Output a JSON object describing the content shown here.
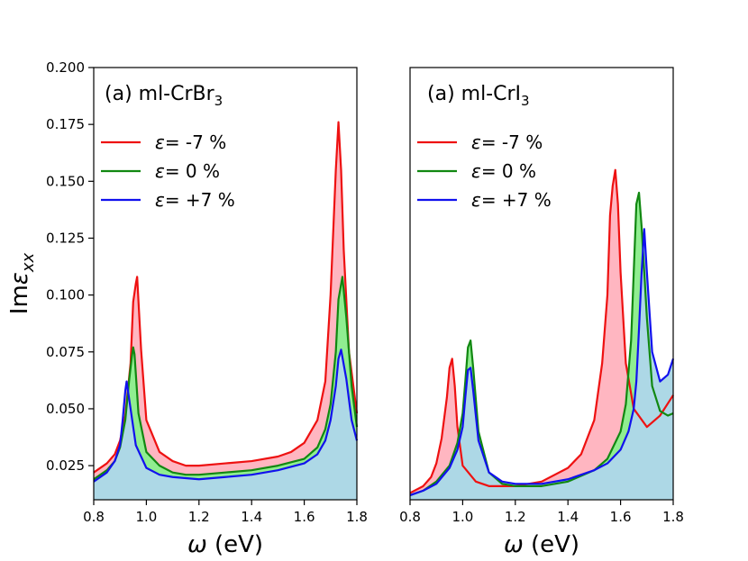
{
  "chart_data": {
    "type": "line",
    "ylabel_main": "Im",
    "ylabel_symbol": "ε",
    "ylabel_sub": "xx",
    "ylim": [
      0.01,
      0.2
    ],
    "yticks": [
      0.025,
      0.05,
      0.075,
      0.1,
      0.125,
      0.15,
      0.175,
      0.2
    ],
    "ytick_labels": [
      "0.025",
      "0.050",
      "0.075",
      "0.100",
      "0.125",
      "0.150",
      "0.175",
      "0.200"
    ],
    "colors": {
      "red": "#ee1111",
      "green": "#118811",
      "blue": "#1111ee",
      "fill_red": "#ffb6c1",
      "fill_green": "#90ee90",
      "fill_blue": "#add8e6"
    },
    "panels": [
      {
        "title_prefix": "(a) ml-CrBr",
        "title_sub": "3",
        "xlabel_symbol": "ω",
        "xlabel_text": " (eV)",
        "xlim": [
          0.8,
          1.8
        ],
        "xticks": [
          0.8,
          1.0,
          1.2,
          1.4,
          1.6,
          1.8
        ],
        "xtick_labels": [
          "0.8",
          "1.0",
          "1.2",
          "1.4",
          "1.6",
          "1.8"
        ],
        "legend": [
          {
            "symbol": "ε",
            "label": "= -7 %"
          },
          {
            "symbol": "ε",
            "label": "= 0 %"
          },
          {
            "symbol": "ε",
            "label": "= +7 %"
          }
        ],
        "series": [
          {
            "name": "ε = -7 %",
            "color": "#ee1111",
            "x": [
              0.8,
              0.85,
              0.88,
              0.9,
              0.92,
              0.94,
              0.95,
              0.96,
              0.965,
              0.98,
              1.0,
              1.05,
              1.1,
              1.15,
              1.2,
              1.3,
              1.4,
              1.5,
              1.55,
              1.6,
              1.65,
              1.68,
              1.7,
              1.72,
              1.73,
              1.74,
              1.75,
              1.77,
              1.8
            ],
            "y": [
              0.022,
              0.026,
              0.03,
              0.036,
              0.047,
              0.07,
              0.097,
              0.105,
              0.108,
              0.076,
              0.045,
              0.031,
              0.027,
              0.025,
              0.025,
              0.026,
              0.027,
              0.029,
              0.031,
              0.035,
              0.045,
              0.062,
              0.1,
              0.155,
              0.176,
              0.155,
              0.12,
              0.075,
              0.048
            ]
          },
          {
            "name": "ε = 0 %",
            "color": "#118811",
            "x": [
              0.8,
              0.85,
              0.88,
              0.9,
              0.92,
              0.935,
              0.945,
              0.95,
              0.955,
              0.97,
              1.0,
              1.05,
              1.1,
              1.15,
              1.2,
              1.3,
              1.4,
              1.5,
              1.6,
              1.65,
              1.68,
              1.7,
              1.72,
              1.73,
              1.745,
              1.76,
              1.78,
              1.8
            ],
            "y": [
              0.019,
              0.023,
              0.027,
              0.033,
              0.045,
              0.063,
              0.073,
              0.077,
              0.074,
              0.048,
              0.031,
              0.025,
              0.022,
              0.021,
              0.021,
              0.022,
              0.023,
              0.025,
              0.028,
              0.033,
              0.041,
              0.052,
              0.075,
              0.098,
              0.108,
              0.09,
              0.06,
              0.042
            ]
          },
          {
            "name": "ε = +7 %",
            "color": "#1111ee",
            "x": [
              0.8,
              0.85,
              0.88,
              0.9,
              0.91,
              0.92,
              0.925,
              0.94,
              0.96,
              1.0,
              1.05,
              1.1,
              1.2,
              1.3,
              1.4,
              1.5,
              1.6,
              1.65,
              1.68,
              1.7,
              1.72,
              1.73,
              1.74,
              1.76,
              1.78,
              1.8
            ],
            "y": [
              0.018,
              0.022,
              0.027,
              0.034,
              0.045,
              0.058,
              0.062,
              0.05,
              0.034,
              0.024,
              0.021,
              0.02,
              0.019,
              0.02,
              0.021,
              0.023,
              0.026,
              0.03,
              0.036,
              0.045,
              0.06,
              0.072,
              0.076,
              0.063,
              0.045,
              0.036
            ]
          }
        ]
      },
      {
        "title_prefix": "(a) ml-CrI",
        "title_sub": "3",
        "xlabel_symbol": "ω",
        "xlabel_text": " (eV)",
        "xlim": [
          0.8,
          1.8
        ],
        "xticks": [
          0.8,
          1.0,
          1.2,
          1.4,
          1.6,
          1.8
        ],
        "xtick_labels": [
          "0.8",
          "1.0",
          "1.2",
          "1.4",
          "1.6",
          "1.8"
        ],
        "legend": [
          {
            "symbol": "ε",
            "label": "= -7 %"
          },
          {
            "symbol": "ε",
            "label": "= 0 %"
          },
          {
            "symbol": "ε",
            "label": "= +7 %"
          }
        ],
        "series": [
          {
            "name": "ε = -7 %",
            "color": "#ee1111",
            "x": [
              0.8,
              0.85,
              0.88,
              0.9,
              0.92,
              0.94,
              0.95,
              0.96,
              0.97,
              0.98,
              1.0,
              1.05,
              1.1,
              1.2,
              1.3,
              1.4,
              1.45,
              1.5,
              1.53,
              1.55,
              1.56,
              1.57,
              1.58,
              1.59,
              1.6,
              1.62,
              1.65,
              1.7,
              1.75,
              1.8
            ],
            "y": [
              0.013,
              0.016,
              0.02,
              0.026,
              0.037,
              0.055,
              0.068,
              0.072,
              0.06,
              0.042,
              0.025,
              0.018,
              0.016,
              0.016,
              0.018,
              0.024,
              0.03,
              0.045,
              0.07,
              0.1,
              0.135,
              0.148,
              0.155,
              0.14,
              0.11,
              0.07,
              0.05,
              0.042,
              0.047,
              0.056
            ]
          },
          {
            "name": "ε = 0 %",
            "color": "#118811",
            "x": [
              0.8,
              0.85,
              0.9,
              0.95,
              0.98,
              1.0,
              1.01,
              1.02,
              1.03,
              1.04,
              1.06,
              1.1,
              1.15,
              1.2,
              1.3,
              1.4,
              1.5,
              1.55,
              1.6,
              1.62,
              1.64,
              1.65,
              1.66,
              1.67,
              1.68,
              1.7,
              1.72,
              1.75,
              1.78,
              1.8
            ],
            "y": [
              0.012,
              0.014,
              0.018,
              0.025,
              0.035,
              0.048,
              0.062,
              0.077,
              0.08,
              0.068,
              0.04,
              0.022,
              0.017,
              0.016,
              0.016,
              0.018,
              0.023,
              0.028,
              0.04,
              0.052,
              0.08,
              0.11,
              0.14,
              0.145,
              0.13,
              0.09,
              0.06,
              0.049,
              0.047,
              0.048
            ]
          },
          {
            "name": "ε = +7 %",
            "color": "#1111ee",
            "x": [
              0.8,
              0.85,
              0.9,
              0.95,
              0.98,
              1.0,
              1.01,
              1.02,
              1.03,
              1.04,
              1.06,
              1.1,
              1.15,
              1.2,
              1.3,
              1.4,
              1.5,
              1.55,
              1.6,
              1.63,
              1.65,
              1.66,
              1.67,
              1.68,
              1.69,
              1.7,
              1.72,
              1.75,
              1.78,
              1.8
            ],
            "y": [
              0.012,
              0.014,
              0.017,
              0.024,
              0.032,
              0.042,
              0.055,
              0.067,
              0.068,
              0.058,
              0.036,
              0.022,
              0.018,
              0.017,
              0.017,
              0.019,
              0.023,
              0.026,
              0.032,
              0.04,
              0.05,
              0.062,
              0.085,
              0.11,
              0.129,
              0.11,
              0.075,
              0.062,
              0.065,
              0.072
            ]
          }
        ]
      }
    ]
  }
}
